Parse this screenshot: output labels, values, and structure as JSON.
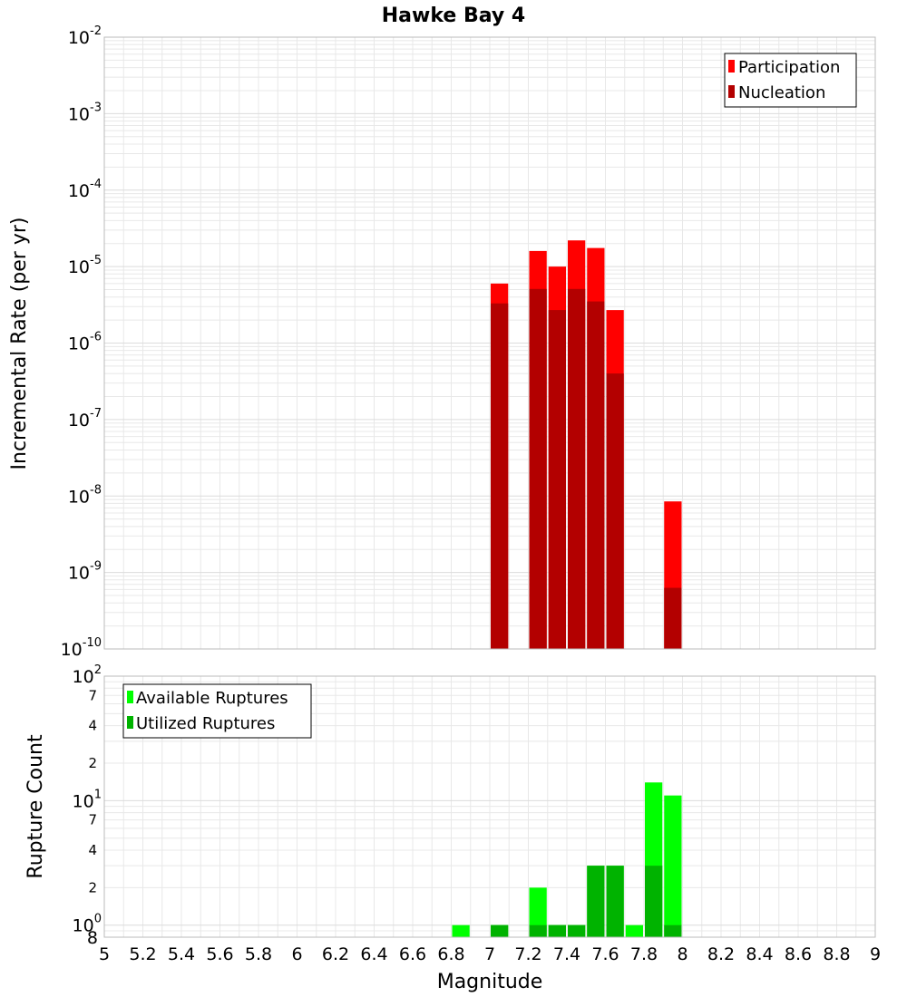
{
  "title": "Hawke Bay 4",
  "colors": {
    "participation": "#ff0000",
    "nucleation": "#b30000",
    "available": "#00ff00",
    "utilized": "#00b300",
    "grid": "#e8e8e8",
    "frame": "#bbbbbb"
  },
  "x_axis": {
    "label": "Magnitude",
    "range": [
      5,
      9
    ],
    "ticks": [
      5,
      5.2,
      5.4,
      5.6,
      5.8,
      6,
      6.2,
      6.4,
      6.6,
      6.8,
      7,
      7.2,
      7.4,
      7.6,
      7.8,
      8,
      8.2,
      8.4,
      8.6,
      8.8,
      9
    ],
    "tick_labels": [
      "5",
      "5.2",
      "5.4",
      "5.6",
      "5.8",
      "6",
      "6.2",
      "6.4",
      "6.6",
      "6.8",
      "7",
      "7.2",
      "7.4",
      "7.6",
      "7.8",
      "8",
      "8.2",
      "8.4",
      "8.6",
      "8.8",
      "9"
    ]
  },
  "top_panel": {
    "ylabel": "Incremental Rate (per yr)",
    "yscale": "log",
    "ylim": [
      1e-10,
      0.01
    ],
    "y_tick_labels": [
      {
        "base": "10",
        "exp": "-2"
      },
      {
        "base": "10",
        "exp": "-3"
      },
      {
        "base": "10",
        "exp": "-4"
      },
      {
        "base": "10",
        "exp": "-5"
      },
      {
        "base": "10",
        "exp": "-6"
      },
      {
        "base": "10",
        "exp": "-7"
      },
      {
        "base": "10",
        "exp": "-8"
      },
      {
        "base": "10",
        "exp": "-9"
      },
      {
        "base": "10",
        "exp": "-10"
      }
    ],
    "legend": [
      "Participation",
      "Nucleation"
    ]
  },
  "bottom_panel": {
    "ylabel": "Rupture Count",
    "yscale": "log",
    "ylim": [
      0.8,
      100
    ],
    "y_tick_labels": [
      {
        "base": "10",
        "exp": "2"
      },
      {
        "base": "10",
        "exp": "1"
      },
      {
        "base": "10",
        "exp": "0"
      }
    ],
    "minor_tick_labels": [
      "7",
      "4",
      "2",
      "7",
      "4",
      "2",
      "8"
    ],
    "legend": [
      "Available Ruptures",
      "Utilized Ruptures"
    ]
  },
  "chart_data": [
    {
      "type": "bar",
      "title": "Hawke Bay 4",
      "xlabel": "Magnitude",
      "ylabel": "Incremental Rate (per yr)",
      "yscale": "log",
      "xlim": [
        5,
        9
      ],
      "ylim": [
        1e-10,
        0.01
      ],
      "bin_width": 0.1,
      "legend_position": "top-right",
      "series": [
        {
          "name": "Participation",
          "x": [
            7.05,
            7.25,
            7.35,
            7.45,
            7.55,
            7.65,
            7.95
          ],
          "values": [
            6e-06,
            1.6e-05,
            1e-05,
            2.2e-05,
            1.75e-05,
            2.7e-06,
            8.5e-09
          ]
        },
        {
          "name": "Nucleation",
          "x": [
            7.05,
            7.25,
            7.35,
            7.45,
            7.55,
            7.65,
            7.95
          ],
          "values": [
            3.3e-06,
            5.1e-06,
            2.7e-06,
            5.1e-06,
            3.5e-06,
            4e-07,
            6.3e-10
          ]
        }
      ]
    },
    {
      "type": "bar",
      "xlabel": "Magnitude",
      "ylabel": "Rupture Count",
      "yscale": "log",
      "xlim": [
        5,
        9
      ],
      "ylim": [
        0.8,
        100
      ],
      "bin_width": 0.1,
      "legend_position": "top-left",
      "series": [
        {
          "name": "Available Ruptures",
          "x": [
            6.85,
            7.05,
            7.25,
            7.35,
            7.45,
            7.55,
            7.65,
            7.75,
            7.85,
            7.95
          ],
          "values": [
            1,
            1,
            2,
            1,
            1,
            3,
            3,
            1,
            14,
            11
          ]
        },
        {
          "name": "Utilized Ruptures",
          "x": [
            7.05,
            7.25,
            7.35,
            7.45,
            7.55,
            7.65,
            7.85,
            7.95
          ],
          "values": [
            1,
            1,
            1,
            1,
            3,
            3,
            3,
            1
          ]
        }
      ]
    }
  ]
}
